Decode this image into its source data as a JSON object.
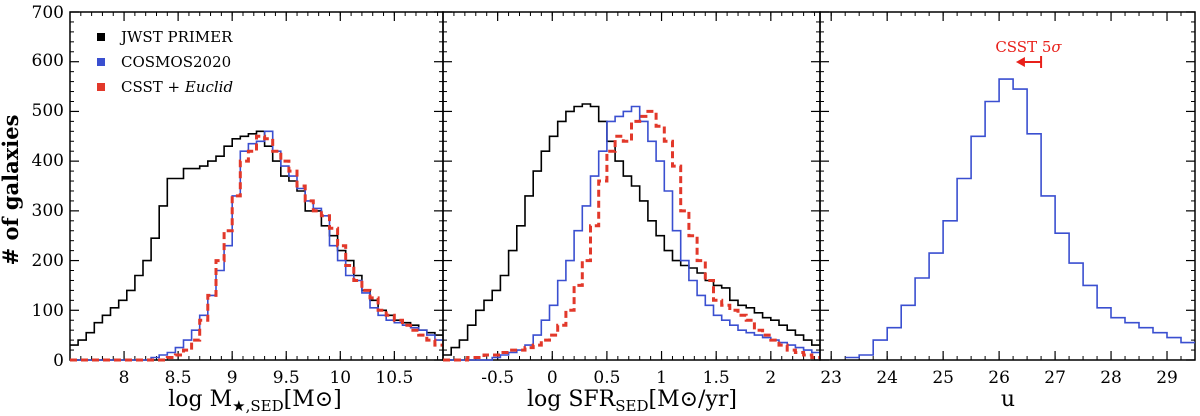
{
  "colors": {
    "jwst": "#000000",
    "cosmos": "#3a4fd0",
    "csst": "#e2382a",
    "annotation": "#e8201a"
  },
  "legend": {
    "jwst": "JWST PRIMER",
    "cosmos": "COSMOS2020",
    "csst_prefix": "CSST + ",
    "csst_italic": "Euclid"
  },
  "ylabel": "# of galaxies",
  "yticks": [
    "0",
    "100",
    "200",
    "300",
    "400",
    "500",
    "600",
    "700"
  ],
  "xlabels": {
    "mass_main": "log M",
    "mass_sub": "★,SED",
    "mass_unit": "[M⊙]",
    "sfr_main": "log SFR",
    "sfr_sub": "SED",
    "sfr_unit": "[M⊙/yr]",
    "u": "u"
  },
  "annotation": {
    "prefix": "CSST 5",
    "sigma": "σ",
    "value": 26.75,
    "arrow_to": 26.3
  },
  "chart_data": [
    {
      "type": "histogram",
      "panel": "stellar-mass",
      "xlabel": "log M★,SED[M⊙]",
      "ylabel": "# of galaxies",
      "xlim": [
        7.5,
        10.95
      ],
      "ylim": [
        0,
        700
      ],
      "xticks": [
        8,
        8.5,
        9,
        9.5,
        10,
        10.5
      ],
      "xtick_labels": [
        "8",
        "8.5",
        "9",
        "9.5",
        "10",
        "10.5"
      ],
      "yticks": [
        0,
        100,
        200,
        300,
        400,
        500,
        600,
        700
      ],
      "bin_start": 7.5,
      "bin_width": 0.075,
      "series": [
        {
          "name": "JWST PRIMER",
          "style": "solid",
          "color": "#000000",
          "values": [
            30,
            40,
            55,
            75,
            90,
            105,
            120,
            140,
            170,
            200,
            245,
            310,
            365,
            365,
            385,
            385,
            390,
            400,
            410,
            430,
            445,
            450,
            455,
            460,
            430,
            400,
            370,
            360,
            340,
            300,
            300,
            270,
            250,
            220,
            200,
            170,
            140,
            120,
            100,
            90,
            80,
            75,
            70,
            60,
            55,
            50
          ]
        },
        {
          "name": "COSMOS2020",
          "style": "solid",
          "color": "#3a4fd0",
          "values": [
            0,
            0,
            0,
            0,
            0,
            0,
            0,
            0,
            0,
            0,
            5,
            10,
            15,
            25,
            40,
            60,
            90,
            130,
            180,
            230,
            330,
            420,
            435,
            440,
            460,
            420,
            390,
            370,
            345,
            320,
            305,
            290,
            230,
            200,
            170,
            160,
            135,
            105,
            90,
            80,
            75,
            70,
            65,
            60,
            50,
            40
          ]
        },
        {
          "name": "CSST + Euclid",
          "style": "dashed",
          "color": "#e2382a",
          "values": [
            0,
            0,
            0,
            0,
            0,
            0,
            0,
            0,
            0,
            0,
            0,
            0,
            5,
            10,
            20,
            40,
            80,
            130,
            200,
            260,
            330,
            400,
            420,
            450,
            445,
            420,
            400,
            380,
            350,
            320,
            300,
            290,
            265,
            230,
            190,
            160,
            140,
            125,
            100,
            90,
            80,
            70,
            60,
            50,
            40,
            30
          ]
        }
      ]
    },
    {
      "type": "histogram",
      "panel": "sfr",
      "xlabel": "log SFR_SED[M⊙/yr]",
      "xlim": [
        -1.0,
        2.45
      ],
      "ylim": [
        0,
        700
      ],
      "xticks": [
        -0.5,
        0,
        0.5,
        1,
        1.5,
        2
      ],
      "xtick_labels": [
        "-0.5",
        "0",
        "0.5",
        "1",
        "1.5",
        "2"
      ],
      "bin_start": -1.0,
      "bin_width": 0.075,
      "series": [
        {
          "name": "JWST PRIMER",
          "style": "solid",
          "color": "#000000",
          "values": [
            10,
            25,
            40,
            70,
            100,
            120,
            140,
            170,
            220,
            270,
            330,
            380,
            420,
            450,
            480,
            500,
            510,
            515,
            510,
            480,
            440,
            400,
            370,
            350,
            320,
            280,
            250,
            220,
            200,
            190,
            185,
            175,
            160,
            150,
            145,
            120,
            110,
            105,
            95,
            85,
            80,
            70,
            60,
            50,
            40,
            30
          ]
        },
        {
          "name": "COSMOS2020",
          "style": "solid",
          "color": "#3a4fd0",
          "values": [
            0,
            0,
            0,
            0,
            0,
            0,
            5,
            10,
            15,
            20,
            30,
            50,
            80,
            110,
            160,
            200,
            260,
            310,
            370,
            420,
            480,
            490,
            500,
            510,
            480,
            440,
            400,
            340,
            260,
            200,
            160,
            130,
            110,
            90,
            80,
            70,
            60,
            55,
            50,
            45,
            40,
            35,
            30,
            25,
            20,
            15
          ]
        },
        {
          "name": "CSST + Euclid",
          "style": "dashed",
          "color": "#e2382a",
          "values": [
            0,
            0,
            0,
            5,
            5,
            10,
            10,
            15,
            20,
            20,
            25,
            30,
            40,
            50,
            70,
            100,
            150,
            200,
            270,
            360,
            420,
            450,
            440,
            480,
            490,
            500,
            470,
            440,
            390,
            300,
            250,
            200,
            160,
            120,
            110,
            100,
            90,
            80,
            60,
            50,
            40,
            30,
            20,
            15,
            10,
            5
          ]
        }
      ]
    },
    {
      "type": "histogram",
      "panel": "u-band",
      "xlabel": "u",
      "xlim": [
        22.8,
        29.5
      ],
      "ylim": [
        0,
        700
      ],
      "xticks": [
        23,
        24,
        25,
        26,
        27,
        28,
        29
      ],
      "xtick_labels": [
        "23",
        "24",
        "25",
        "26",
        "27",
        "28",
        "29"
      ],
      "bin_start": 23.25,
      "bin_width": 0.25,
      "series": [
        {
          "name": "COSMOS2020",
          "style": "solid",
          "color": "#3a4fd0",
          "values": [
            5,
            10,
            40,
            65,
            110,
            165,
            215,
            280,
            365,
            450,
            520,
            565,
            545,
            455,
            330,
            255,
            195,
            150,
            105,
            85,
            75,
            65,
            55,
            45,
            35
          ]
        }
      ]
    }
  ]
}
